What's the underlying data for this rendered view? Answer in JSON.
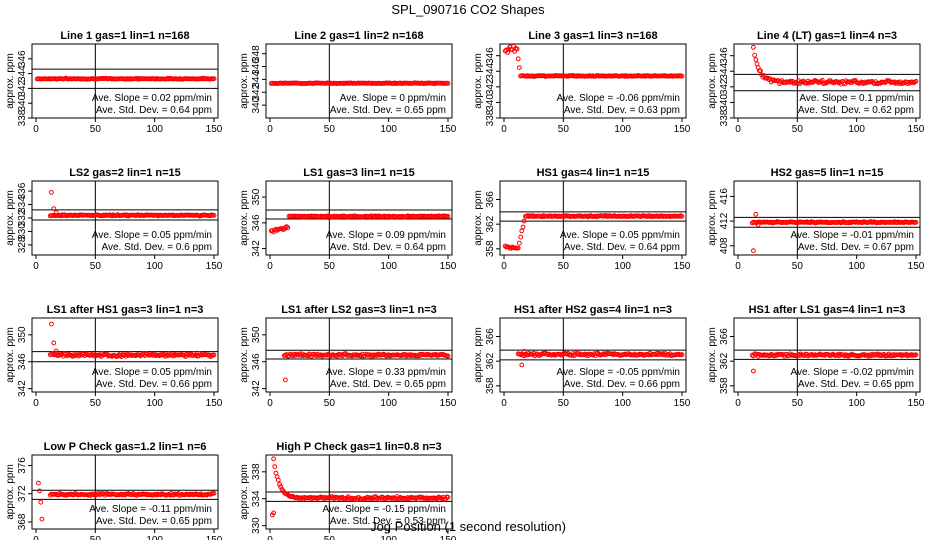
{
  "figure": {
    "title": "SPL_090716  CO2 Shapes",
    "xlabel": "Jog Position (1 second resolution)",
    "ylabel": "approx. ppm",
    "slope_prefix": "Ave. Slope = ",
    "slope_unit": " ppm/min",
    "stdev_prefix": "Ave. Std. Dev. = ",
    "stdev_unit": " ppm",
    "point_color": "#ff0000",
    "line_color": "#000000"
  },
  "chart_data": [
    {
      "type": "scatter",
      "title": "Line 1 gas=1 lin=1 n=168",
      "xlim": [
        0,
        150
      ],
      "ylim": [
        338,
        348
      ],
      "yticks": [
        338,
        340,
        342,
        344,
        346
      ],
      "xticks": [
        0,
        50,
        100,
        150
      ],
      "hlines": [
        344.6,
        342.0
      ],
      "vline": 50,
      "slope": "0.02",
      "stdev": "0.64",
      "pattern": "flat",
      "base": 343.3,
      "noise": 0.15
    },
    {
      "type": "scatter",
      "title": "Line 2 gas=1 lin=2 n=168",
      "xlim": [
        0,
        150
      ],
      "ylim": [
        338,
        349.5
      ],
      "yticks": [
        340,
        342,
        344,
        346,
        348
      ],
      "xticks": [
        0,
        50,
        100,
        150
      ],
      "hlines": [],
      "vline": 50,
      "slope": "0",
      "stdev": "0.65",
      "pattern": "flat",
      "base": 343.4,
      "noise": 0.15
    },
    {
      "type": "scatter",
      "title": "Line 3 gas=1 lin=3 n=168",
      "xlim": [
        0,
        150
      ],
      "ylim": [
        338,
        347.5
      ],
      "yticks": [
        338,
        340,
        342,
        344,
        346
      ],
      "xticks": [
        0,
        50,
        100,
        150
      ],
      "hlines": [],
      "vline": 50,
      "slope": "-0.06",
      "stdev": "0.63",
      "pattern": "dropTop",
      "base": 343.4,
      "noise": 0.15
    },
    {
      "type": "scatter",
      "title": "Line 4 (LT) gas=1 lin=4 n=3",
      "xlim": [
        0,
        150
      ],
      "ylim": [
        338,
        347.5
      ],
      "yticks": [
        338,
        340,
        342,
        344,
        346
      ],
      "xticks": [
        0,
        50,
        100,
        150
      ],
      "hlines": [
        343.6,
        341.5
      ],
      "vline": 50,
      "slope": "0.1",
      "stdev": "0.62",
      "pattern": "decay",
      "base": 342.6,
      "noise": 0.35,
      "start": 347
    },
    {
      "type": "scatter",
      "title": "LS2 gas=2 lin=1 n=15",
      "xlim": [
        0,
        150
      ],
      "ylim": [
        326.5,
        337.5
      ],
      "yticks": [
        328,
        330,
        332,
        334,
        336
      ],
      "xticks": [
        0,
        50,
        100,
        150
      ],
      "hlines": [
        333.2,
        331.7
      ],
      "vline": 50,
      "slope": "0.05",
      "stdev": "0.6",
      "pattern": "spikeStart",
      "base": 332.4,
      "noise": 0.2,
      "spikes": [
        [
          13,
          335.8
        ],
        [
          15,
          333.4
        ],
        [
          17,
          332.8
        ]
      ]
    },
    {
      "type": "scatter",
      "title": "LS1 gas=3 lin=1 n=15",
      "xlim": [
        0,
        150
      ],
      "ylim": [
        341,
        352.5
      ],
      "yticks": [
        342,
        346,
        350
      ],
      "xticks": [
        0,
        50,
        100,
        150
      ],
      "hlines": [
        348.0,
        346.6
      ],
      "vline": 50,
      "slope": "0.09",
      "stdev": "0.64",
      "pattern": "riseStart",
      "base": 347.0,
      "noise": 0.2,
      "start": 344.6
    },
    {
      "type": "scatter",
      "title": "HS1 gas=4 lin=1 n=15",
      "xlim": [
        0,
        150
      ],
      "ylim": [
        357,
        369
      ],
      "yticks": [
        358,
        362,
        366
      ],
      "xticks": [
        0,
        50,
        100,
        150
      ],
      "hlines": [
        364.0,
        362.5
      ],
      "vline": 50,
      "slope": "0.05",
      "stdev": "0.64",
      "pattern": "lowStart",
      "base": 363.3,
      "noise": 0.2,
      "start": 358.2
    },
    {
      "type": "scatter",
      "title": "HS2 gas=5 lin=1 n=15",
      "xlim": [
        0,
        150
      ],
      "ylim": [
        406.5,
        418.5
      ],
      "yticks": [
        408,
        412,
        416
      ],
      "xticks": [
        0,
        50,
        100,
        150
      ],
      "hlines": [
        412.6,
        411.0
      ],
      "vline": 50,
      "slope": "-0.01",
      "stdev": "0.67",
      "pattern": "spikeStart",
      "base": 411.8,
      "noise": 0.2,
      "spikes": [
        [
          13,
          407.2
        ],
        [
          15,
          413.1
        ],
        [
          17,
          411.4
        ]
      ]
    },
    {
      "type": "scatter",
      "title": "LS1 after HS1 gas=3 lin=1 n=3",
      "xlim": [
        0,
        150
      ],
      "ylim": [
        341.5,
        352.5
      ],
      "yticks": [
        342,
        346,
        350
      ],
      "xticks": [
        0,
        50,
        100,
        150
      ],
      "hlines": [
        347.5,
        346.0
      ],
      "vline": 50,
      "slope": "0.05",
      "stdev": "0.66",
      "pattern": "spikeStart",
      "base": 347.0,
      "noise": 0.45,
      "spikes": [
        [
          13,
          351.6
        ],
        [
          15,
          348.8
        ],
        [
          17,
          347.6
        ]
      ]
    },
    {
      "type": "scatter",
      "title": "LS1 after LS2 gas=3 lin=1 n=3",
      "xlim": [
        0,
        150
      ],
      "ylim": [
        341.5,
        352.5
      ],
      "yticks": [
        342,
        346,
        350
      ],
      "xticks": [
        0,
        50,
        100,
        150
      ],
      "hlines": [
        347.7,
        346.4
      ],
      "vline": 50,
      "slope": "0.33",
      "stdev": "0.65",
      "pattern": "spikeStart",
      "base": 347.0,
      "noise": 0.45,
      "spikes": [
        [
          13,
          343.3
        ]
      ]
    },
    {
      "type": "scatter",
      "title": "HS1 after HS2 gas=4 lin=1 n=3",
      "xlim": [
        0,
        150
      ],
      "ylim": [
        357,
        369
      ],
      "yticks": [
        358,
        362,
        366
      ],
      "xticks": [
        0,
        50,
        100,
        150
      ],
      "hlines": [
        363.8,
        362.2
      ],
      "vline": 50,
      "slope": "-0.05",
      "stdev": "0.66",
      "pattern": "spikeStart",
      "base": 363.1,
      "noise": 0.45,
      "spikes": [
        [
          15,
          361.4
        ],
        [
          17,
          363.6
        ]
      ]
    },
    {
      "type": "scatter",
      "title": "HS1 after LS1 gas=4 lin=1 n=3",
      "xlim": [
        0,
        150
      ],
      "ylim": [
        357,
        369
      ],
      "yticks": [
        358,
        362,
        366
      ],
      "xticks": [
        0,
        50,
        100,
        150
      ],
      "hlines": [
        363.8,
        362.3
      ],
      "vline": 50,
      "slope": "-0.02",
      "stdev": "0.65",
      "pattern": "spikeStart",
      "base": 363.0,
      "noise": 0.4,
      "spikes": [
        [
          13,
          360.4
        ]
      ]
    },
    {
      "type": "scatter",
      "title": "Low P Check gas=1.2 lin=1 n=6",
      "xlim": [
        0,
        150
      ],
      "ylim": [
        367,
        377.5
      ],
      "yticks": [
        368,
        372,
        376
      ],
      "xticks": [
        0,
        50,
        100,
        150
      ],
      "hlines": [
        372.5,
        371.2
      ],
      "vline": 50,
      "slope": "-0.11",
      "stdev": "0.65",
      "pattern": "spikeStart",
      "base": 371.9,
      "noise": 0.3,
      "spikes": [
        [
          2,
          373.5
        ],
        [
          3,
          372.4
        ],
        [
          4,
          370.8
        ],
        [
          5,
          368.4
        ]
      ]
    },
    {
      "type": "scatter",
      "title": "High P Check gas=1 lin=0.8 n=3",
      "xlim": [
        0,
        150
      ],
      "ylim": [
        329.5,
        340.5
      ],
      "yticks": [
        330,
        334,
        338
      ],
      "xticks": [
        0,
        50,
        100,
        150
      ],
      "hlines": [
        335.0,
        333.6
      ],
      "vline": 50,
      "slope": "-0.15",
      "stdev": "0.53",
      "pattern": "highDecay",
      "base": 334.1,
      "noise": 0.3,
      "start": 339.8,
      "spikes": [
        [
          2,
          331.6
        ],
        [
          3,
          331.9
        ]
      ]
    }
  ]
}
